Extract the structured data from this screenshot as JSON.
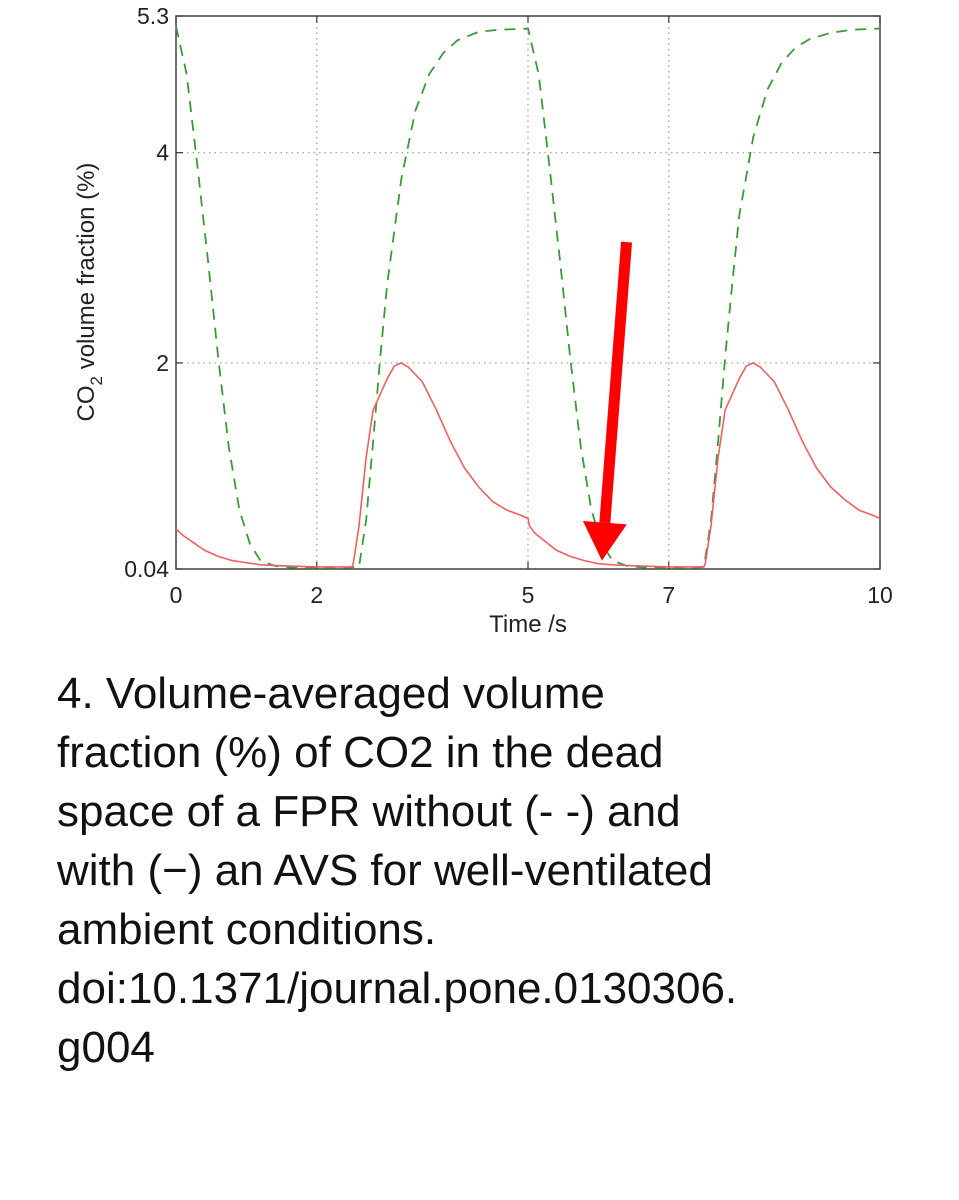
{
  "chart_data": {
    "type": "line",
    "xlabel": "Time /s",
    "ylabel_main": "CO",
    "ylabel_sub": "2",
    "ylabel_rest": " volume fraction (%)",
    "xlim": [
      0,
      10
    ],
    "ylim": [
      0.04,
      5.3
    ],
    "x_ticks": [
      0,
      2,
      5,
      7,
      10
    ],
    "y_ticks": [
      0.04,
      2,
      4,
      5.3
    ],
    "x_tick_labels": [
      "0",
      "2",
      "5",
      "7",
      "10"
    ],
    "y_tick_labels": [
      "0.04",
      "2",
      "4",
      "5.3"
    ],
    "grid": true,
    "series": [
      {
        "style": "dashed",
        "color": "#3a9a3a",
        "x": [
          0,
          0.15,
          0.3,
          0.45,
          0.6,
          0.75,
          0.9,
          1.05,
          1.2,
          1.4,
          1.7,
          2.0,
          2.3,
          2.6,
          2.7,
          2.8,
          2.9,
          3.0,
          3.2,
          3.4,
          3.6,
          3.8,
          4.0,
          4.3,
          4.6,
          5.0,
          5.15,
          5.3,
          5.45,
          5.6,
          5.75,
          5.9,
          6.05,
          6.2,
          6.4,
          6.7,
          7.0,
          7.3,
          7.5,
          7.6,
          7.7,
          7.8,
          7.9,
          8.0,
          8.2,
          8.4,
          8.6,
          8.8,
          9.0,
          9.3,
          9.6,
          10.0
        ],
        "y": [
          5.2,
          4.75,
          3.9,
          3.0,
          2.05,
          1.2,
          0.6,
          0.28,
          0.12,
          0.07,
          0.05,
          0.05,
          0.05,
          0.06,
          0.5,
          1.25,
          2.05,
          2.75,
          3.75,
          4.4,
          4.75,
          4.95,
          5.07,
          5.15,
          5.17,
          5.18,
          4.75,
          3.9,
          3.0,
          2.05,
          1.2,
          0.6,
          0.28,
          0.12,
          0.07,
          0.05,
          0.05,
          0.05,
          0.06,
          0.5,
          1.25,
          2.05,
          2.75,
          3.4,
          4.15,
          4.6,
          4.85,
          5.0,
          5.08,
          5.14,
          5.17,
          5.18
        ]
      },
      {
        "style": "solid",
        "color": "#f06060",
        "x": [
          0,
          0.1,
          0.25,
          0.4,
          0.6,
          0.8,
          1.0,
          1.2,
          1.5,
          2.0,
          2.4,
          2.5,
          2.52,
          2.6,
          2.7,
          2.8,
          3.0,
          3.1,
          3.2,
          3.3,
          3.5,
          3.7,
          3.9,
          4.1,
          4.3,
          4.5,
          4.7,
          4.9,
          5.0,
          5.02,
          5.1,
          5.25,
          5.4,
          5.6,
          5.8,
          6.0,
          6.2,
          6.5,
          7.0,
          7.4,
          7.5,
          7.52,
          7.6,
          7.7,
          7.8,
          8.0,
          8.1,
          8.2,
          8.3,
          8.5,
          8.7,
          8.9,
          9.1,
          9.3,
          9.5,
          9.7,
          9.9,
          10.0
        ],
        "y": [
          0.42,
          0.36,
          0.29,
          0.22,
          0.16,
          0.12,
          0.1,
          0.08,
          0.07,
          0.06,
          0.06,
          0.06,
          0.1,
          0.45,
          1.1,
          1.55,
          1.85,
          1.97,
          2.0,
          1.96,
          1.82,
          1.55,
          1.25,
          1.0,
          0.82,
          0.68,
          0.6,
          0.55,
          0.52,
          0.45,
          0.38,
          0.3,
          0.22,
          0.16,
          0.12,
          0.09,
          0.08,
          0.07,
          0.06,
          0.06,
          0.06,
          0.1,
          0.45,
          1.1,
          1.55,
          1.85,
          1.97,
          2.0,
          1.96,
          1.82,
          1.55,
          1.25,
          1.0,
          0.82,
          0.7,
          0.6,
          0.55,
          0.52
        ]
      }
    ],
    "annotation": {
      "type": "arrow",
      "color": "#ff0000",
      "from": [
        6.4,
        3.15
      ],
      "to": [
        6.05,
        0.12
      ]
    }
  },
  "caption": {
    "lines": [
      " 4. Volume-averaged volume",
      "fraction (%) of CO2 in the dead",
      "space of a FPR without (- -) and",
      "with (−) an AVS for well-ventilated",
      "ambient conditions.",
      "doi:10.1371/journal.pone.0130306.",
      "g004"
    ]
  }
}
